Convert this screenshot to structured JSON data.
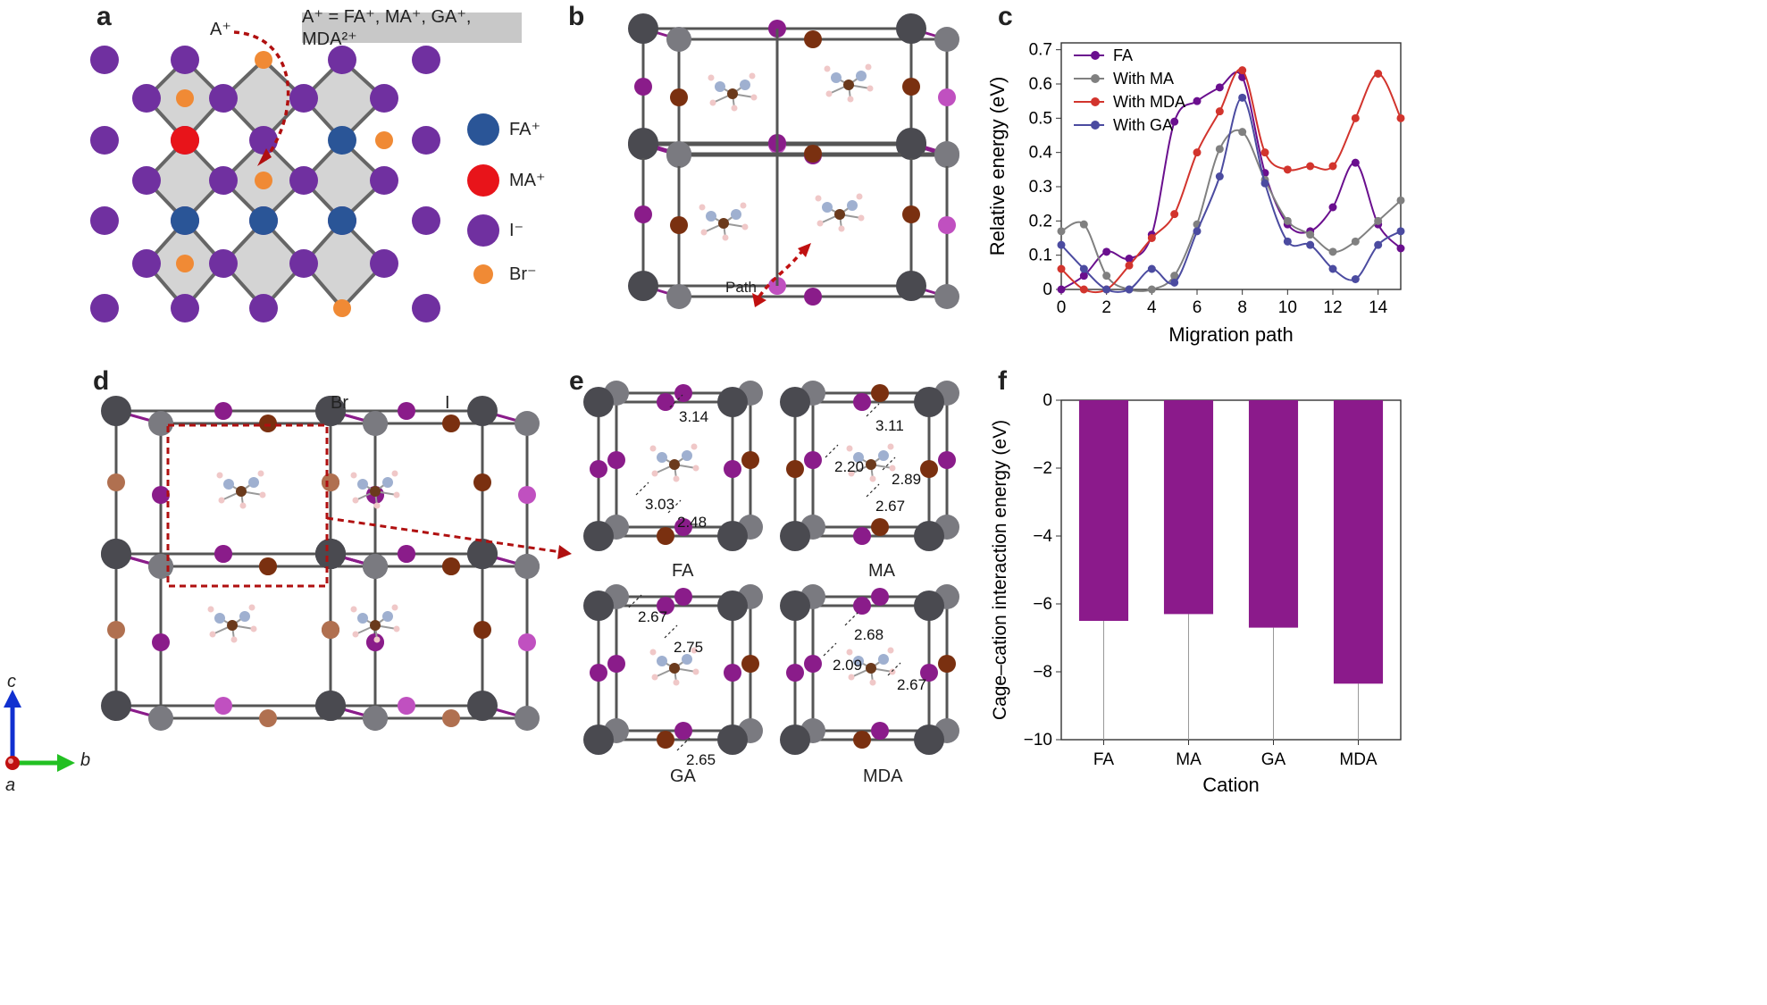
{
  "panels": {
    "a": {
      "letter": "a",
      "ion_label": "A⁺",
      "formula_banner": "A⁺ = FA⁺, MA⁺, GA⁺, MDA²⁺",
      "legend": [
        {
          "label": "FA⁺",
          "color": "#2a5597"
        },
        {
          "label": "MA⁺",
          "color": "#e8141a"
        },
        {
          "label": "I⁻",
          "color": "#7030a0"
        },
        {
          "label": "Br⁻",
          "color": "#f08a35"
        }
      ]
    },
    "b": {
      "letter": "b",
      "path_label": "Path"
    },
    "c": {
      "letter": "c"
    },
    "d": {
      "letter": "d",
      "label_br": "Br",
      "label_i": "I",
      "axis_c": "c",
      "axis_b": "b",
      "axis_a": "a"
    },
    "e": {
      "letter": "e",
      "cells": [
        {
          "name": "FA",
          "distances": [
            "3.14",
            "3.03",
            "2.48"
          ]
        },
        {
          "name": "MA",
          "distances": [
            "3.11",
            "2.20",
            "2.89",
            "2.67"
          ]
        },
        {
          "name": "GA",
          "distances": [
            "2.67",
            "2.75",
            "2.65"
          ]
        },
        {
          "name": "MDA",
          "distances": [
            "2.68",
            "2.09",
            "2.67"
          ]
        }
      ]
    },
    "f": {
      "letter": "f"
    }
  },
  "chart_data": [
    {
      "type": "line",
      "panel": "c",
      "xlabel": "Migration path",
      "ylabel": "Relative energy (eV)",
      "xlim": [
        0,
        15
      ],
      "ylim": [
        0,
        0.72
      ],
      "xticks": [
        0,
        2,
        4,
        6,
        8,
        10,
        12,
        14
      ],
      "yticks": [
        0,
        0.1,
        0.2,
        0.3,
        0.4,
        0.5,
        0.6,
        0.7
      ],
      "legend_position": "top-left",
      "series": [
        {
          "name": "FA",
          "color": "#6a0f8e",
          "x": [
            0,
            1,
            2,
            3,
            4,
            5,
            6,
            7,
            8,
            9,
            10,
            11,
            12,
            13,
            14,
            15
          ],
          "y": [
            0.0,
            0.04,
            0.11,
            0.09,
            0.16,
            0.49,
            0.55,
            0.59,
            0.62,
            0.34,
            0.19,
            0.17,
            0.24,
            0.37,
            0.19,
            0.12
          ]
        },
        {
          "name": "With MA",
          "color": "#808080",
          "x": [
            0,
            1,
            2,
            3,
            4,
            5,
            6,
            7,
            8,
            9,
            10,
            11,
            12,
            13,
            14,
            15
          ],
          "y": [
            0.17,
            0.19,
            0.04,
            0.0,
            0.0,
            0.04,
            0.19,
            0.41,
            0.46,
            0.32,
            0.2,
            0.16,
            0.11,
            0.14,
            0.2,
            0.26
          ]
        },
        {
          "name": "With MDA",
          "color": "#d2342d",
          "x": [
            0,
            1,
            2,
            3,
            4,
            5,
            6,
            7,
            8,
            9,
            10,
            11,
            12,
            13,
            14,
            15
          ],
          "y": [
            0.06,
            0.0,
            0.0,
            0.07,
            0.15,
            0.22,
            0.4,
            0.52,
            0.64,
            0.4,
            0.35,
            0.36,
            0.36,
            0.5,
            0.63,
            0.5
          ]
        },
        {
          "name": "With GA",
          "color": "#4b4ba0",
          "x": [
            0,
            1,
            2,
            3,
            4,
            5,
            6,
            7,
            8,
            9,
            10,
            11,
            12,
            13,
            14,
            15
          ],
          "y": [
            0.13,
            0.06,
            0.0,
            0.0,
            0.06,
            0.02,
            0.17,
            0.33,
            0.56,
            0.31,
            0.14,
            0.13,
            0.06,
            0.03,
            0.13,
            0.17
          ]
        }
      ]
    },
    {
      "type": "bar",
      "panel": "f",
      "xlabel": "Cation",
      "ylabel": "Cage–cation interaction energy (eV)",
      "categories": [
        "FA",
        "MA",
        "GA",
        "MDA"
      ],
      "values": [
        -6.5,
        -6.3,
        -6.7,
        -8.35
      ],
      "ylim": [
        -10,
        0
      ],
      "yticks": [
        0,
        -2,
        -4,
        -6,
        -8,
        -10
      ],
      "color": "#8b1a8b"
    }
  ]
}
